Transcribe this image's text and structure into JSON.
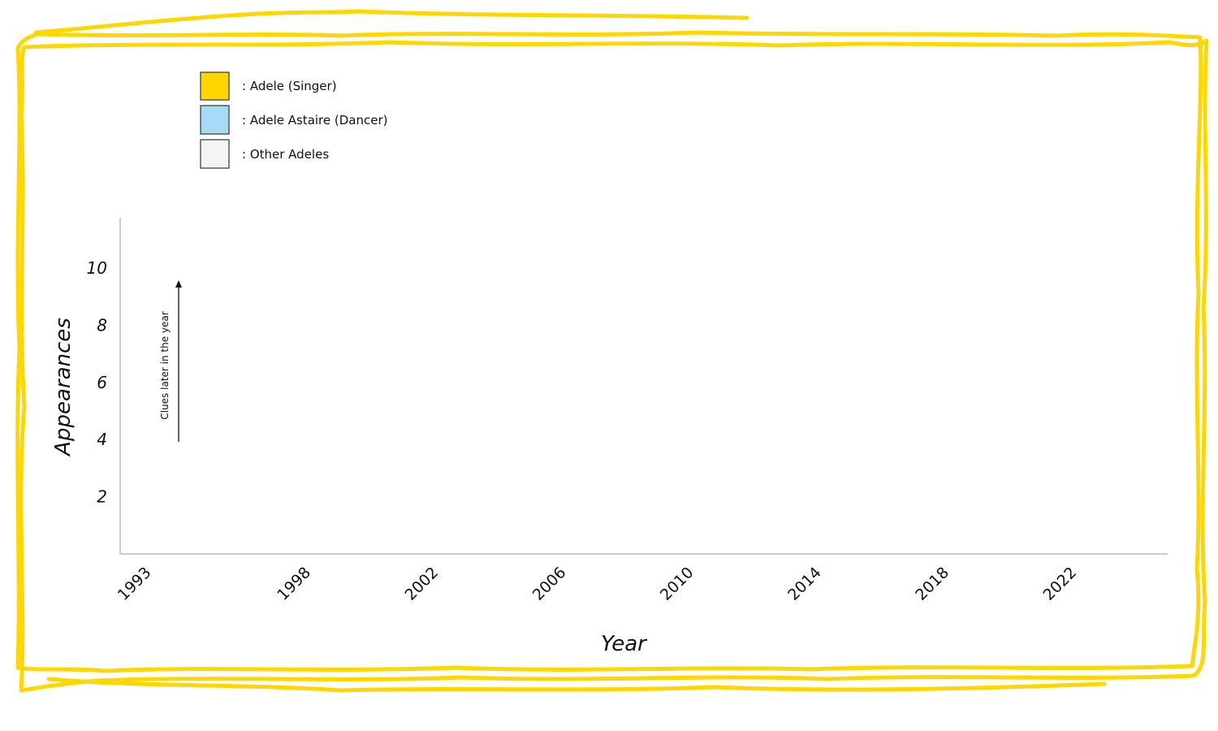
{
  "colors": {
    "frame": "#FFD700",
    "axis": "#CCCCCC",
    "text": "#111111"
  },
  "chart_data": {
    "type": "bar",
    "title": "",
    "xlabel": "Year",
    "ylabel": "Appearances",
    "x_ticks": [
      "1993",
      "1998",
      "2002",
      "2006",
      "2010",
      "2014",
      "2018",
      "2022"
    ],
    "y_ticks": [
      "2",
      "4",
      "6",
      "8",
      "10"
    ],
    "ylim": [
      0,
      11.8
    ],
    "grid": false,
    "legend_position": "top-left",
    "legend": [
      {
        "swatch_color": "#FFD700",
        "label": ":  Adele (Singer)"
      },
      {
        "swatch_color": "#A6DBF5",
        "label": ":  Adele Astaire (Dancer)"
      },
      {
        "swatch_color": "#F2F4F6",
        "label": ":  Other Adeles"
      }
    ],
    "annotation": "Clues later in the year",
    "series": []
  }
}
